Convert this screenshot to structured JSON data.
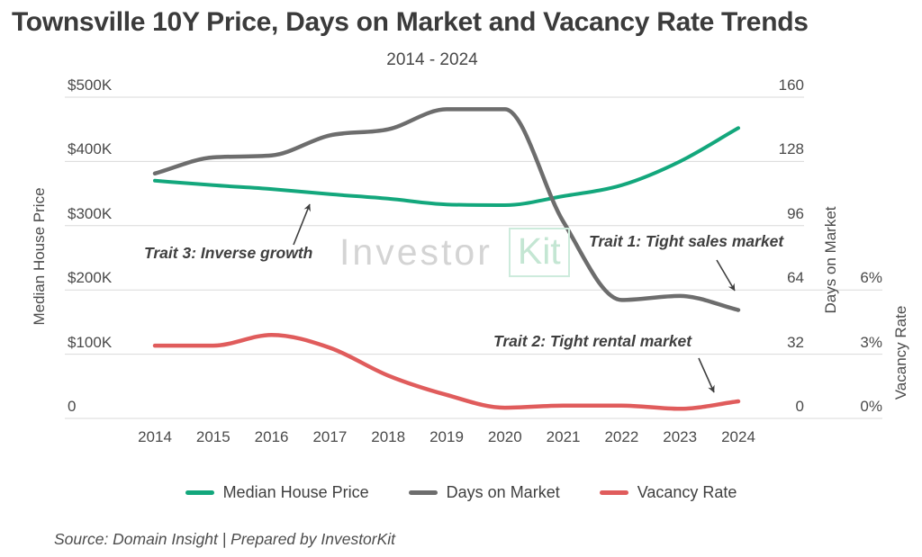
{
  "title": "Townsville 10Y Price, Days on Market and Vacancy Rate Trends",
  "subtitle": "2014 - 2024",
  "watermark": {
    "part1": "Investor",
    "part2": "Kit"
  },
  "source": "Source: Domain Insight | Prepared by InvestorKit",
  "chart_data": {
    "type": "line",
    "title": "Townsville 10Y Price, Days on Market and Vacancy Rate Trends",
    "subtitle": "2014 - 2024",
    "x": [
      2014,
      2015,
      2016,
      2017,
      2018,
      2019,
      2020,
      2021,
      2022,
      2023,
      2024
    ],
    "x_tick_labels": [
      "2014",
      "2015",
      "2016",
      "2017",
      "2018",
      "2019",
      "2020",
      "2021",
      "2022",
      "2023",
      "2024"
    ],
    "series": [
      {
        "name": "Median House Price",
        "yaxis": "price",
        "color": "#13a77c",
        "values": [
          370000,
          363000,
          357000,
          349000,
          342000,
          333000,
          332000,
          346000,
          363000,
          400000,
          452000
        ]
      },
      {
        "name": "Days on Market",
        "yaxis": "days",
        "color": "#6d6d6d",
        "values": [
          122,
          130,
          131,
          141,
          144,
          154,
          154,
          98,
          59,
          61,
          54
        ]
      },
      {
        "name": "Vacancy Rate",
        "yaxis": "vacancy",
        "color": "#e05c5c",
        "values": [
          3.4,
          3.4,
          3.9,
          3.3,
          2.0,
          1.1,
          0.5,
          0.6,
          0.6,
          0.45,
          0.8
        ]
      }
    ],
    "axes": {
      "price": {
        "title": "Median House Price",
        "side": "left",
        "range": [
          0,
          500000
        ],
        "tick_labels": [
          "$500K",
          "$400K",
          "$300K",
          "$200K",
          "$100K",
          "0"
        ]
      },
      "days": {
        "title": "Days on Market",
        "side": "right",
        "range": [
          0,
          160
        ],
        "tick_labels": [
          "160",
          "128",
          "96",
          "64",
          "32",
          "0"
        ]
      },
      "vacancy": {
        "title": "Vacancy Rate",
        "side": "far-right",
        "range": [
          0,
          6
        ],
        "tick_labels": [
          "6%",
          "3%",
          "0%"
        ]
      }
    },
    "annotations": [
      {
        "id": "trait1",
        "text": "Trait 1: Tight sales market",
        "target_series": "Days on Market",
        "target_x": 2023.9
      },
      {
        "id": "trait2",
        "text": "Trait 2: Tight rental market",
        "target_series": "Vacancy Rate",
        "target_x": 2023.6
      },
      {
        "id": "trait3",
        "text": "Trait 3: Inverse growth",
        "target_series": "Median House Price",
        "target_x": 2016.6
      }
    ],
    "grid": true,
    "legend_position": "bottom"
  }
}
